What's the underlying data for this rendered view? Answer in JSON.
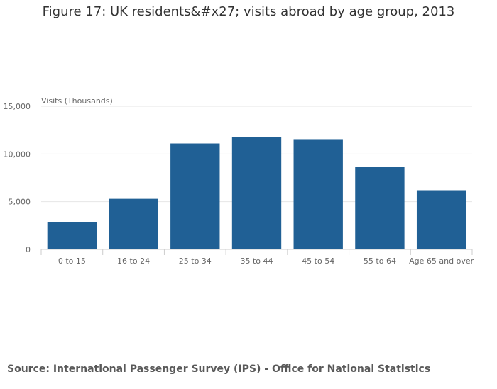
{
  "title": "Figure 17: UK residents&#x27; visits abroad by age group, 2013",
  "source": "Source: International Passenger Survey (IPS) - Office for National Statistics",
  "colors": {
    "bar": "#206095",
    "grid": "#e6e6e6",
    "axis_line": "#cccccc",
    "text": "#666666"
  },
  "chart_data": {
    "type": "bar",
    "ylabel": "Visits (Thousands)",
    "xlabel": "",
    "categories": [
      "0 to 15",
      "16 to 24",
      "25 to 34",
      "35 to 44",
      "45 to 54",
      "55 to 64",
      "Age 65 and over"
    ],
    "values": [
      2850,
      5300,
      11100,
      11800,
      11550,
      8650,
      6200
    ],
    "ylim": [
      0,
      15000
    ],
    "yticks": [
      0,
      5000,
      10000,
      15000
    ],
    "ytick_labels": [
      "0",
      "5,000",
      "10,000",
      "15,000"
    ],
    "grid": true,
    "legend": "none"
  }
}
